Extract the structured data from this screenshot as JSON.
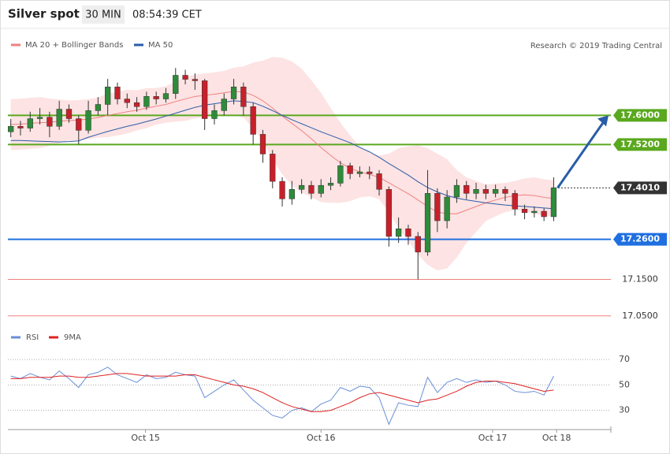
{
  "header": {
    "title": "Silver spot",
    "timeframe": "30 MIN",
    "time": "08:54:39 CET",
    "credit": "Research © 2019 Trading Central"
  },
  "chart_data": [
    {
      "type": "candlestick",
      "xlim": [
        -0.3,
        61.9
      ],
      "ylim": [
        17.03,
        17.83
      ],
      "up_color": "#2e8b3a",
      "down_color": "#c8202a",
      "open": [
        17.555,
        17.57,
        17.565,
        17.591,
        17.595,
        17.57,
        17.617,
        17.591,
        17.559,
        17.613,
        17.63,
        17.678,
        17.645,
        17.635,
        17.624,
        17.652,
        17.645,
        17.66,
        17.71,
        17.699,
        17.695,
        17.591,
        17.613,
        17.645,
        17.678,
        17.624,
        17.548,
        17.494,
        17.419,
        17.371,
        17.397,
        17.408,
        17.386,
        17.408,
        17.414,
        17.462,
        17.44,
        17.445,
        17.44,
        17.397,
        17.268,
        17.289,
        17.268,
        17.225,
        17.386,
        17.311,
        17.376,
        17.408,
        17.386,
        17.397,
        17.386,
        17.397,
        17.386,
        17.343,
        17.333,
        17.337,
        17.322
      ],
      "high": [
        17.59,
        17.585,
        17.61,
        17.62,
        17.61,
        17.64,
        17.63,
        17.6,
        17.64,
        17.65,
        17.7,
        17.69,
        17.66,
        17.65,
        17.665,
        17.665,
        17.675,
        17.73,
        17.725,
        17.715,
        17.7,
        17.63,
        17.66,
        17.7,
        17.69,
        17.635,
        17.56,
        17.505,
        17.43,
        17.42,
        17.425,
        17.42,
        17.425,
        17.43,
        17.475,
        17.47,
        17.46,
        17.46,
        17.45,
        17.405,
        17.32,
        17.3,
        17.28,
        17.45,
        17.4,
        17.395,
        17.425,
        17.42,
        17.415,
        17.41,
        17.41,
        17.405,
        17.395,
        17.355,
        17.35,
        17.345,
        17.43
      ],
      "low": [
        17.54,
        17.545,
        17.555,
        17.575,
        17.54,
        17.56,
        17.58,
        17.52,
        17.55,
        17.6,
        17.6,
        17.63,
        17.62,
        17.61,
        17.615,
        17.63,
        17.635,
        17.645,
        17.685,
        17.67,
        17.56,
        17.575,
        17.6,
        17.63,
        17.6,
        17.52,
        17.47,
        17.4,
        17.35,
        17.355,
        17.385,
        17.37,
        17.375,
        17.395,
        17.405,
        17.425,
        17.43,
        17.425,
        17.38,
        17.24,
        17.25,
        17.245,
        17.15,
        17.215,
        17.28,
        17.29,
        17.36,
        17.37,
        17.37,
        17.37,
        17.375,
        17.365,
        17.325,
        17.315,
        17.32,
        17.31,
        17.31
      ],
      "close": [
        17.57,
        17.565,
        17.591,
        17.595,
        17.57,
        17.617,
        17.591,
        17.559,
        17.613,
        17.63,
        17.678,
        17.645,
        17.635,
        17.624,
        17.652,
        17.645,
        17.66,
        17.71,
        17.699,
        17.695,
        17.591,
        17.613,
        17.645,
        17.678,
        17.624,
        17.548,
        17.494,
        17.419,
        17.371,
        17.397,
        17.408,
        17.386,
        17.408,
        17.414,
        17.462,
        17.44,
        17.445,
        17.44,
        17.397,
        17.268,
        17.289,
        17.268,
        17.225,
        17.386,
        17.311,
        17.376,
        17.408,
        17.386,
        17.397,
        17.386,
        17.397,
        17.386,
        17.343,
        17.333,
        17.337,
        17.322,
        17.401
      ],
      "series": [
        {
          "name": "MA 20 + Bollinger Bands",
          "color": "#f08080",
          "band_color": "#fde3e3",
          "values": [
            17.575,
            17.576,
            17.578,
            17.58,
            17.581,
            17.584,
            17.586,
            17.587,
            17.59,
            17.594,
            17.6,
            17.605,
            17.61,
            17.614,
            17.62,
            17.625,
            17.63,
            17.638,
            17.645,
            17.652,
            17.655,
            17.658,
            17.662,
            17.666,
            17.664,
            17.655,
            17.64,
            17.62,
            17.598,
            17.578,
            17.558,
            17.536,
            17.512,
            17.49,
            17.47,
            17.455,
            17.445,
            17.438,
            17.43,
            17.415,
            17.4,
            17.385,
            17.368,
            17.35,
            17.335,
            17.33,
            17.33,
            17.34,
            17.35,
            17.36,
            17.368,
            17.375,
            17.38,
            17.382,
            17.38,
            17.375,
            17.372
          ],
          "upper": [
            17.645,
            17.646,
            17.648,
            17.65,
            17.646,
            17.644,
            17.641,
            17.642,
            17.645,
            17.649,
            17.66,
            17.665,
            17.67,
            17.669,
            17.675,
            17.675,
            17.68,
            17.693,
            17.705,
            17.712,
            17.715,
            17.718,
            17.722,
            17.731,
            17.734,
            17.745,
            17.75,
            17.76,
            17.758,
            17.748,
            17.728,
            17.696,
            17.662,
            17.62,
            17.58,
            17.545,
            17.515,
            17.498,
            17.49,
            17.495,
            17.51,
            17.515,
            17.518,
            17.51,
            17.495,
            17.48,
            17.45,
            17.43,
            17.42,
            17.41,
            17.413,
            17.415,
            17.42,
            17.427,
            17.43,
            17.425,
            17.422
          ],
          "lower": [
            17.505,
            17.506,
            17.508,
            17.51,
            17.516,
            17.524,
            17.531,
            17.532,
            17.535,
            17.539,
            17.54,
            17.545,
            17.55,
            17.559,
            17.565,
            17.575,
            17.58,
            17.583,
            17.585,
            17.592,
            17.595,
            17.598,
            17.602,
            17.601,
            17.594,
            17.565,
            17.53,
            17.48,
            17.438,
            17.408,
            17.388,
            17.376,
            17.362,
            17.36,
            17.36,
            17.365,
            17.375,
            17.378,
            17.37,
            17.335,
            17.29,
            17.255,
            17.218,
            17.19,
            17.175,
            17.18,
            17.21,
            17.25,
            17.28,
            17.31,
            17.323,
            17.335,
            17.34,
            17.337,
            17.33,
            17.325,
            17.322
          ]
        },
        {
          "name": "MA 50",
          "color": "#2a5ca8",
          "values": [
            17.531,
            17.531,
            17.53,
            17.529,
            17.528,
            17.527,
            17.528,
            17.53,
            17.54,
            17.548,
            17.556,
            17.563,
            17.57,
            17.576,
            17.583,
            17.59,
            17.598,
            17.606,
            17.614,
            17.622,
            17.628,
            17.632,
            17.636,
            17.64,
            17.638,
            17.635,
            17.625,
            17.613,
            17.6,
            17.588,
            17.577,
            17.566,
            17.555,
            17.545,
            17.535,
            17.525,
            17.512,
            17.5,
            17.485,
            17.468,
            17.452,
            17.436,
            17.418,
            17.402,
            17.39,
            17.38,
            17.373,
            17.368,
            17.364,
            17.36,
            17.357,
            17.354,
            17.352,
            17.35,
            17.348,
            17.346,
            17.344
          ]
        }
      ],
      "levels": [
        {
          "value": 17.6,
          "label": "17.6000",
          "color": "#5aa81e",
          "box": true,
          "dash": false
        },
        {
          "value": 17.52,
          "label": "17.5200",
          "color": "#5aa81e",
          "box": true,
          "dash": false
        },
        {
          "value": 17.401,
          "label": "17.4010",
          "color": "#333333",
          "box": true,
          "dash": true
        },
        {
          "value": 17.26,
          "label": "17.2600",
          "color": "#1f6fe0",
          "box": true,
          "dash": false
        },
        {
          "value": 17.15,
          "label": "17.1500",
          "color": "#f08080",
          "box": false,
          "dash": false
        },
        {
          "value": 17.05,
          "label": "17.0500",
          "color": "#f08080",
          "box": false,
          "dash": false
        }
      ],
      "xticks": [
        {
          "value": 13.9,
          "label": "Oct 15"
        },
        {
          "value": 32,
          "label": "Oct 16"
        },
        {
          "value": 49.7,
          "label": "Oct 17"
        },
        {
          "value": 56.3,
          "label": "Oct 18"
        }
      ]
    },
    {
      "type": "line",
      "xlim": [
        -0.3,
        61.9
      ],
      "ylim": [
        18,
        80
      ],
      "yticks": [
        30,
        50,
        70
      ],
      "grid": true,
      "series": [
        {
          "name": "RSI",
          "color": "#6a8fd8",
          "values": [
            57,
            55,
            59,
            56,
            54,
            61,
            55,
            48,
            58,
            60,
            64,
            58,
            55,
            52,
            58,
            55,
            56,
            60,
            58,
            57,
            40,
            45,
            50,
            54,
            46,
            38,
            32,
            26,
            24,
            30,
            32,
            29,
            35,
            38,
            48,
            45,
            49,
            48,
            40,
            19,
            36,
            34,
            33,
            56,
            44,
            52,
            55,
            52,
            54,
            52,
            53,
            50,
            45,
            44,
            45,
            42,
            57
          ]
        },
        {
          "name": "9MA",
          "color": "#e02020",
          "values": [
            55,
            55,
            56,
            56,
            56,
            57,
            57,
            56,
            56,
            57,
            58,
            59,
            59,
            58,
            57,
            57,
            57,
            57,
            58,
            58,
            56,
            54,
            52,
            50,
            49,
            47,
            44,
            40,
            36,
            33,
            31,
            29,
            29,
            30,
            33,
            36,
            40,
            43,
            44,
            42,
            40,
            38,
            36,
            38,
            39,
            42,
            45,
            49,
            52,
            53,
            53,
            52,
            51,
            49,
            47,
            45,
            46
          ]
        }
      ]
    }
  ]
}
